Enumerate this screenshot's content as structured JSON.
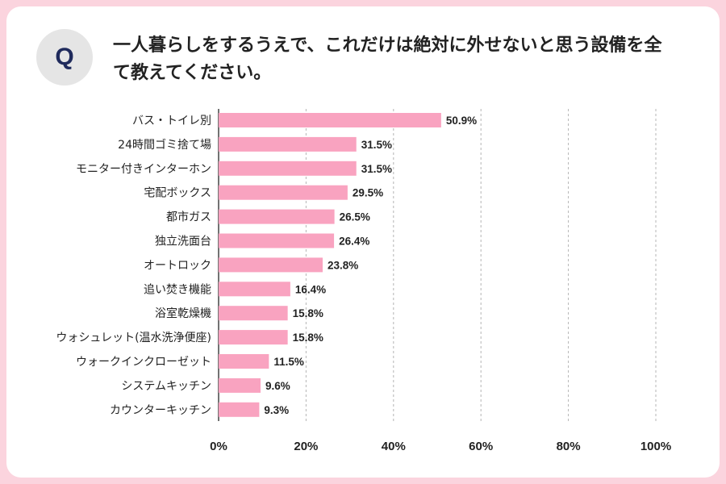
{
  "badge": "Q",
  "question": "一人暮らしをするうえで、これだけは絶対に外せないと思う設備を全て教えてください。",
  "colors": {
    "bar": "#f9a3c0",
    "frame": "#fbd4de",
    "badge_bg": "#e5e5e5",
    "badge_text": "#1f2a5c"
  },
  "chart_data": {
    "type": "bar",
    "orientation": "horizontal",
    "categories": [
      "バス・トイレ別",
      "24時間ゴミ捨て場",
      "モニター付きインターホン",
      "宅配ボックス",
      "都市ガス",
      "独立洗面台",
      "オートロック",
      "追い焚き機能",
      "浴室乾燥機",
      "ウォシュレット(温水洗浄便座)",
      "ウォークインクローゼット",
      "システムキッチン",
      "カウンターキッチン"
    ],
    "values": [
      50.9,
      31.5,
      31.5,
      29.5,
      26.5,
      26.4,
      23.8,
      16.4,
      15.8,
      15.8,
      11.5,
      9.6,
      9.3
    ],
    "value_labels": [
      "50.9%",
      "31.5%",
      "31.5%",
      "29.5%",
      "26.5%",
      "26.4%",
      "23.8%",
      "16.4%",
      "15.8%",
      "15.8%",
      "11.5%",
      "9.6%",
      "9.3%"
    ],
    "xlim": [
      0,
      100
    ],
    "xticks": [
      0,
      20,
      40,
      60,
      80,
      100
    ],
    "xtick_labels": [
      "0%",
      "20%",
      "40%",
      "60%",
      "80%",
      "100%"
    ],
    "grid": true
  }
}
